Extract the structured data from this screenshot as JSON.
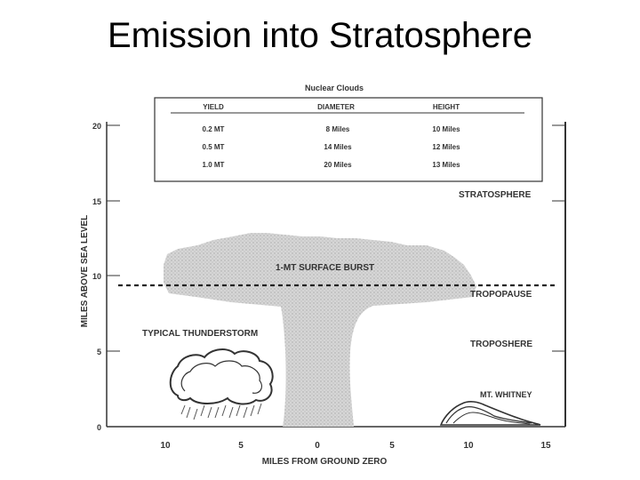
{
  "slide": {
    "title": "Emission into Stratosphere"
  },
  "table": {
    "title": "Nuclear Clouds",
    "headers": [
      "YIELD",
      "DIAMETER",
      "HEIGHT"
    ],
    "rows": [
      [
        "0.2 MT",
        "8 Miles",
        "10 Miles"
      ],
      [
        "0.5 MT",
        "14 Miles",
        "12 Miles"
      ],
      [
        "1.0 MT",
        "20 Miles",
        "13 Miles"
      ]
    ]
  },
  "axes": {
    "ylabel": "MILES ABOVE SEA LEVEL",
    "xlabel": "MILES FROM GROUND ZERO",
    "yticks": [
      "0",
      "5",
      "10",
      "15",
      "20"
    ],
    "xticks": [
      "10",
      "5",
      "0",
      "5",
      "10",
      "15"
    ]
  },
  "labels": {
    "stratosphere": "STRATOSPHERE",
    "tropopause": "TROPOPAUSE",
    "troposphere": "TROPOSHERE",
    "burst": "1-MT SURFACE BURST",
    "thunderstorm": "TYPICAL THUNDERSTORM",
    "mountain": "MT. WHITNEY"
  },
  "colors": {
    "cloud": "#d2d2d2",
    "ink": "#333333"
  }
}
